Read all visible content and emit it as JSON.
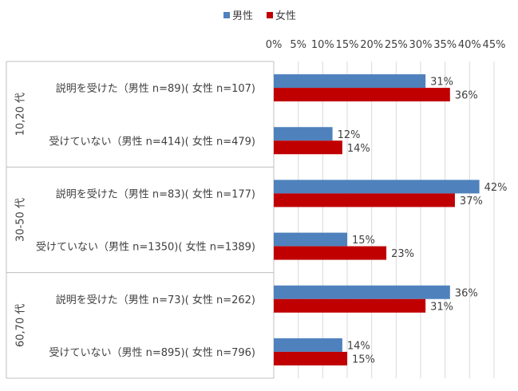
{
  "chart_data": {
    "type": "bar",
    "orientation": "horizontal",
    "legend": {
      "position": "top",
      "entries": [
        {
          "name": "男性",
          "color": "#4f81bd"
        },
        {
          "name": "女性",
          "color": "#c00000"
        }
      ]
    },
    "xlim": [
      0,
      45
    ],
    "xticks": [
      "0%",
      "5%",
      "10%",
      "15%",
      "20%",
      "25%",
      "30%",
      "35%",
      "40%",
      "45%"
    ],
    "xticks_position": "top",
    "grid": true,
    "groups": [
      {
        "label": "10,20 代",
        "categories": [
          {
            "label": "説明を受けた（男性 n=89)( 女性 n=107)",
            "male": 31,
            "female": 36,
            "male_label": "31%",
            "female_label": "36%"
          },
          {
            "label": "受けていない（男性 n=414)( 女性 n=479)",
            "male": 12,
            "female": 14,
            "male_label": "12%",
            "female_label": "14%"
          }
        ]
      },
      {
        "label": "30-50 代",
        "categories": [
          {
            "label": "説明を受けた（男性 n=83)( 女性 n=177)",
            "male": 42,
            "female": 37,
            "male_label": "42%",
            "female_label": "37%"
          },
          {
            "label": "受けていない（男性 n=1350)( 女性 n=1389)",
            "male": 15,
            "female": 23,
            "male_label": "15%",
            "female_label": "23%"
          }
        ]
      },
      {
        "label": "60,70 代",
        "categories": [
          {
            "label": "説明を受けた（男性 n=73)( 女性 n=262)",
            "male": 36,
            "female": 31,
            "male_label": "36%",
            "female_label": "31%"
          },
          {
            "label": "受けていない（男性 n=895)( 女性 n=796)",
            "male": 14,
            "female": 15,
            "male_label": "14%",
            "female_label": "15%"
          }
        ]
      }
    ]
  }
}
